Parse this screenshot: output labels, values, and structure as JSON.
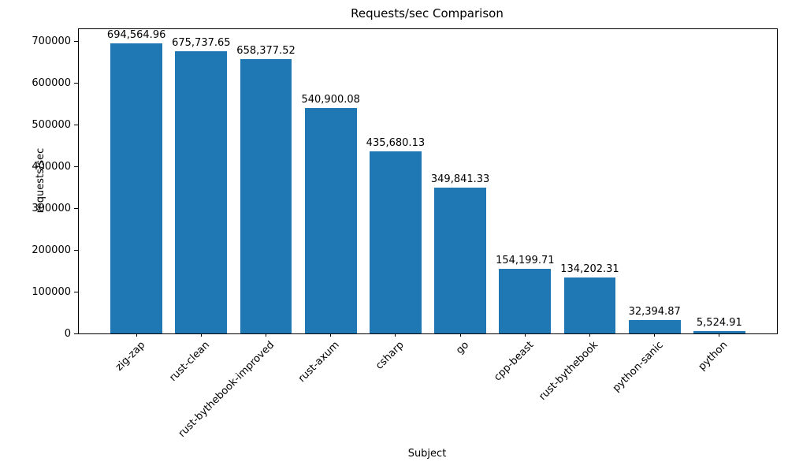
{
  "chart_data": {
    "type": "bar",
    "title": "Requests/sec Comparison",
    "xlabel": "Subject",
    "ylabel": "requests/sec",
    "categories": [
      "zig-zap",
      "rust-clean",
      "rust-bythebook-improved",
      "rust-axum",
      "csharp",
      "go",
      "cpp-beast",
      "rust-bythebook",
      "python-sanic",
      "python"
    ],
    "values": [
      694564.96,
      675737.65,
      658377.52,
      540900.08,
      435680.13,
      349841.33,
      154199.71,
      134202.31,
      32394.87,
      5524.91
    ],
    "value_labels": [
      "694,564.96",
      "675,737.65",
      "658,377.52",
      "540,900.08",
      "435,680.13",
      "349,841.33",
      "154,199.71",
      "134,202.31",
      "32,394.87",
      "5,524.91"
    ],
    "yticks": [
      0,
      100000,
      200000,
      300000,
      400000,
      500000,
      600000,
      700000
    ],
    "ytick_labels": [
      "0",
      "100000",
      "200000",
      "300000",
      "400000",
      "500000",
      "600000",
      "700000"
    ],
    "ylim": [
      0,
      729293
    ],
    "bar_color": "#1f77b4",
    "axis_color": "#000000",
    "grid": false,
    "legend": "none",
    "x_tick_rotation_deg": 45
  }
}
